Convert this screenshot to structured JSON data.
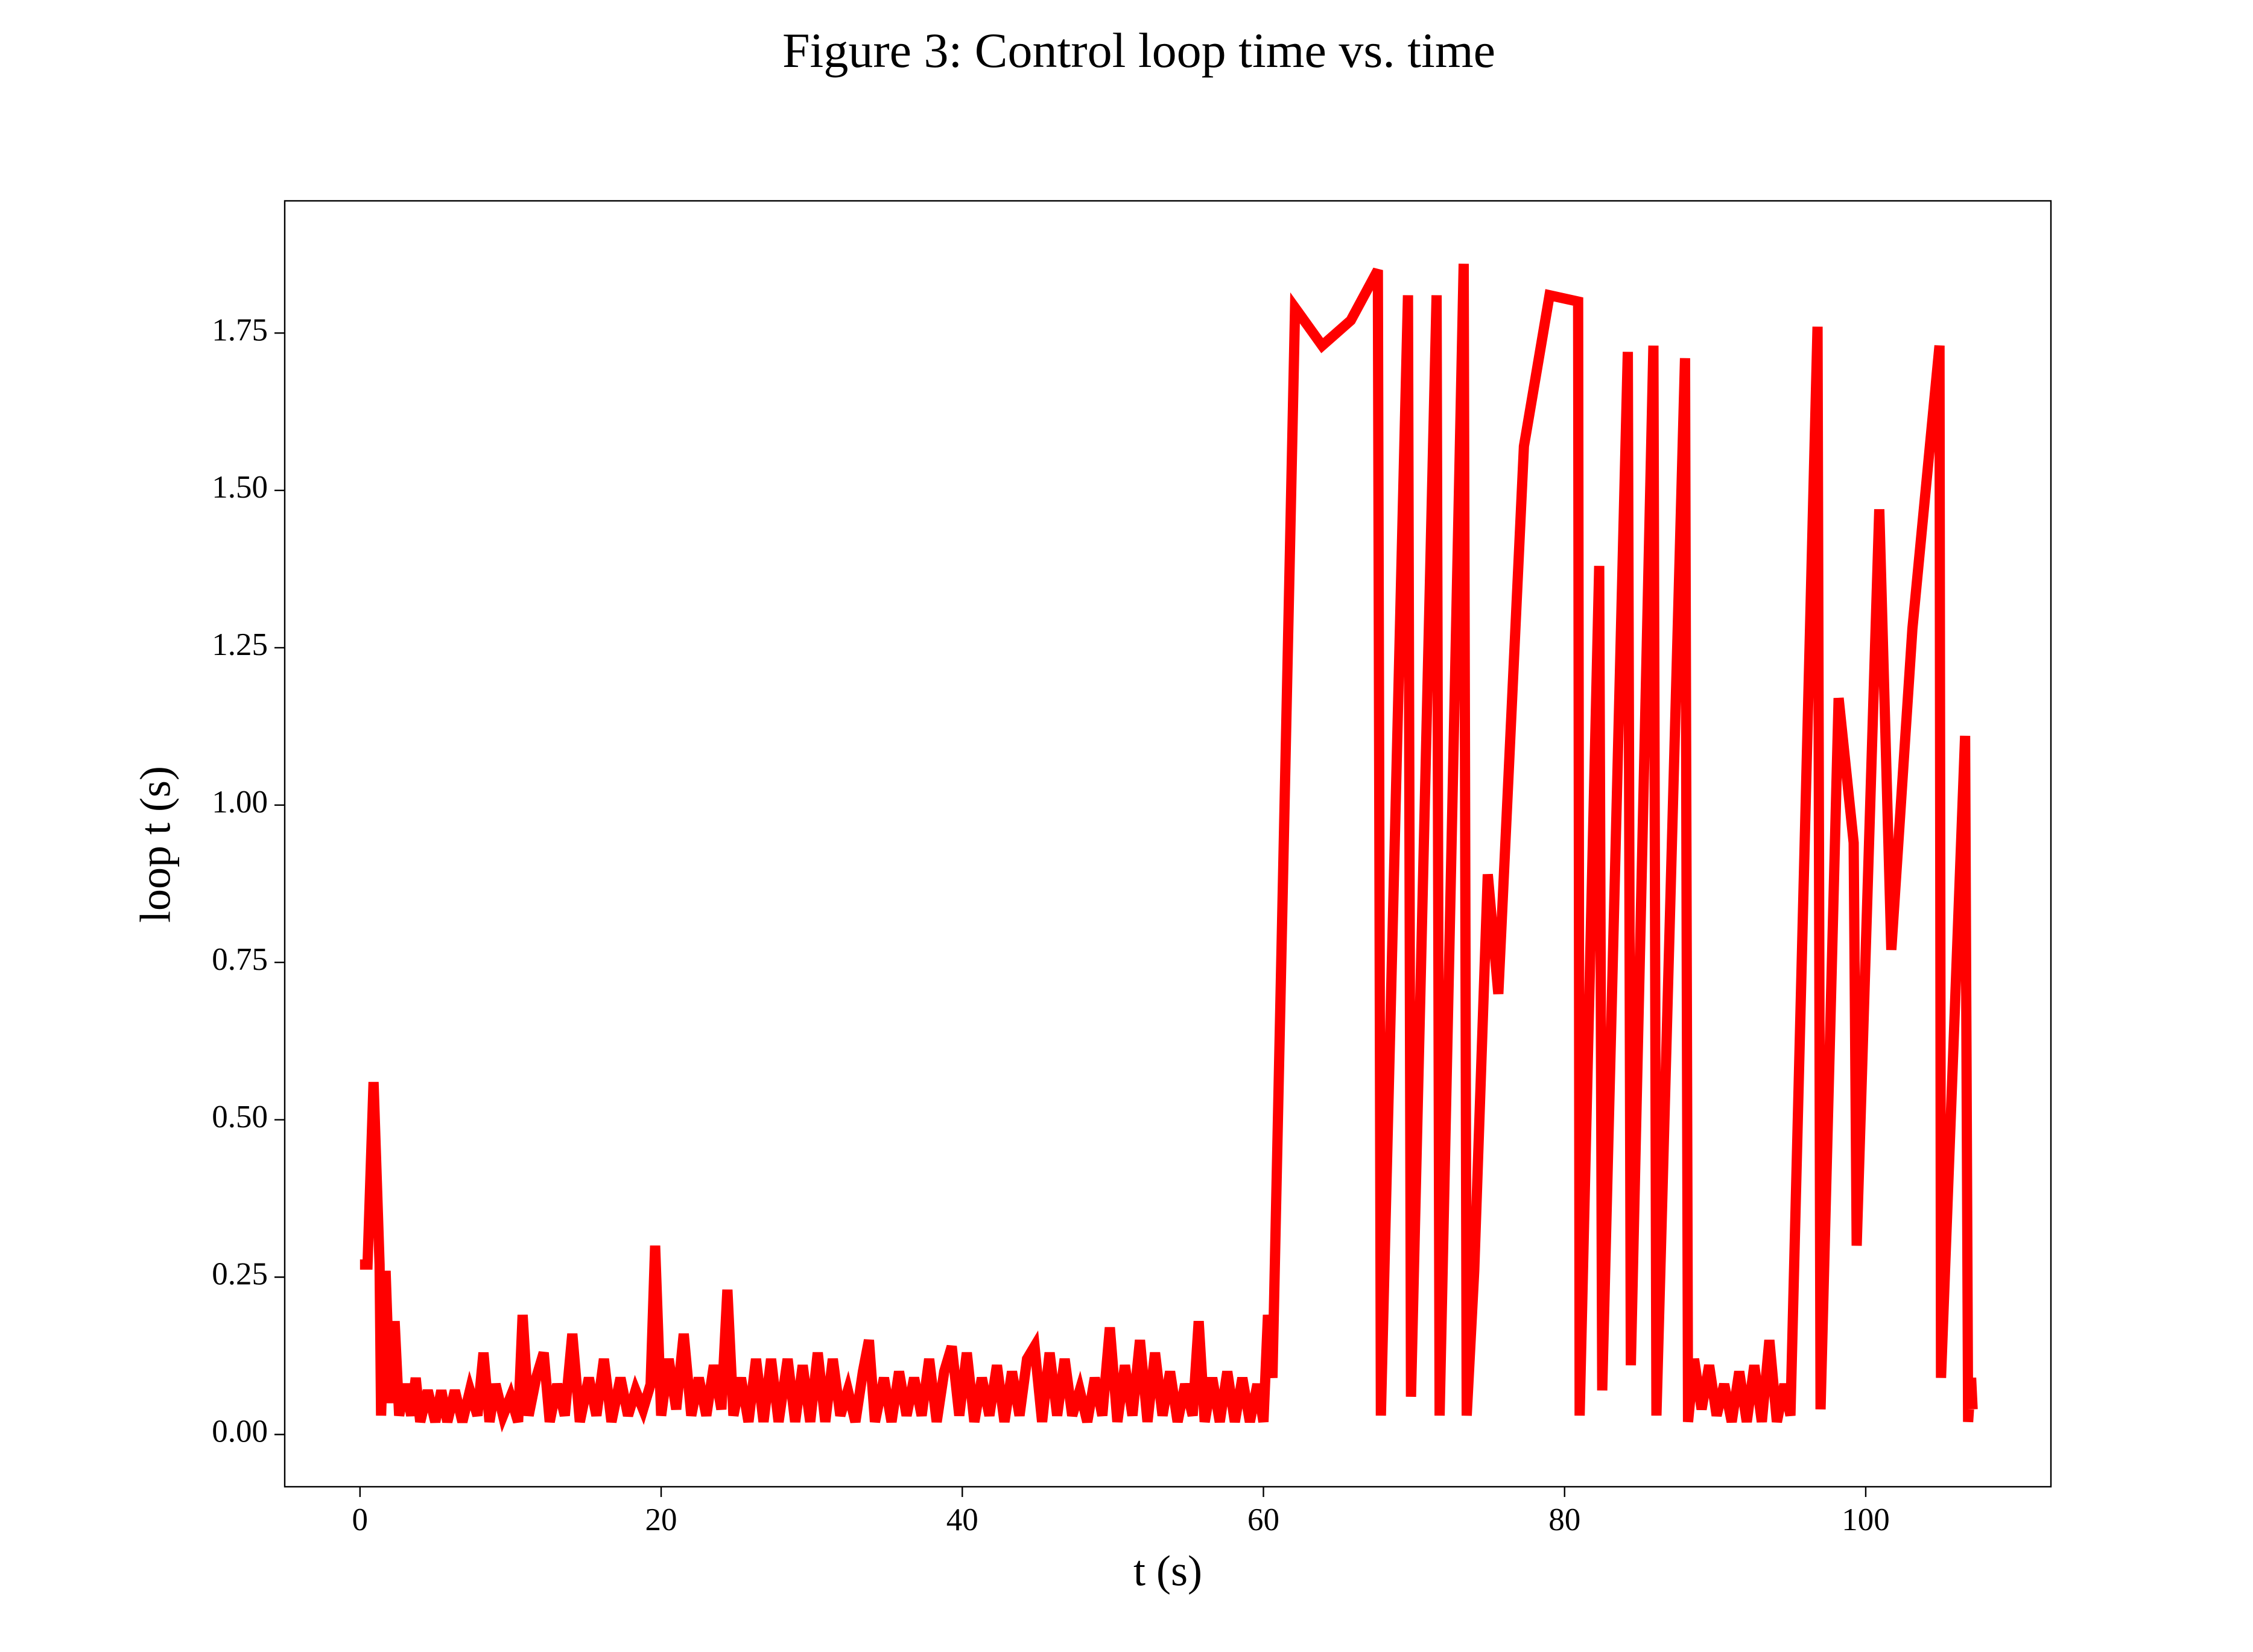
{
  "chart_data": {
    "type": "line",
    "title": "Figure 3: Control loop time vs. time",
    "xlabel": "t (s)",
    "ylabel": "loop t (s)",
    "color": "#ff0000",
    "xlim": [
      -5.0,
      112.3
    ],
    "ylim": [
      -0.083,
      1.96
    ],
    "xticks": [
      0,
      20,
      40,
      60,
      80,
      100
    ],
    "yticks": [
      {
        "value": 0,
        "label": "0.00"
      },
      0.25,
      {
        "value": 0.5,
        "label": "0.50"
      },
      0.75,
      {
        "value": 1,
        "label": "1.00"
      },
      1.25,
      {
        "value": 1.5,
        "label": "1.50"
      },
      1.75
    ],
    "x": [
      0,
      0.5,
      0.9,
      1.3,
      1.4,
      1.7,
      2.0,
      2.3,
      2.6,
      3.0,
      3.4,
      3.7,
      4.0,
      4.5,
      5.0,
      5.4,
      5.8,
      6.3,
      6.8,
      7.3,
      7.8,
      8.2,
      8.6,
      9.0,
      9.5,
      10.0,
      10.5,
      10.8,
      11.2,
      11.7,
      12.2,
      12.6,
      13.1,
      13.6,
      14.1,
      14.6,
      15.2,
      15.7,
      16.2,
      16.7,
      17.3,
      17.8,
      18.3,
      18.8,
      19.3,
      19.6,
      20.0,
      20.5,
      21.0,
      21.5,
      22.0,
      22.5,
      23.0,
      23.5,
      24.0,
      24.4,
      24.8,
      25.3,
      25.8,
      26.3,
      26.8,
      27.3,
      27.8,
      28.4,
      28.9,
      29.4,
      29.9,
      30.4,
      30.9,
      31.4,
      31.9,
      32.4,
      32.9,
      33.4,
      33.8,
      34.2,
      34.8,
      35.3,
      35.8,
      36.3,
      36.8,
      37.3,
      37.8,
      38.3,
      38.8,
      39.3,
      39.8,
      40.3,
      40.8,
      41.3,
      41.8,
      42.3,
      42.8,
      43.3,
      43.8,
      44.3,
      44.8,
      45.3,
      45.8,
      46.3,
      46.8,
      47.3,
      47.8,
      48.3,
      48.8,
      49.3,
      49.8,
      50.3,
      50.8,
      51.3,
      51.8,
      52.3,
      52.8,
      53.3,
      53.8,
      54.3,
      54.8,
      55.3,
      55.7,
      56.1,
      56.6,
      57.1,
      57.6,
      58.1,
      58.6,
      59.1,
      59.6,
      60.0,
      60.3,
      60.6,
      62.1,
      63.9,
      65.8,
      67.6,
      67.8,
      69.6,
      69.8,
      71.5,
      71.7,
      73.3,
      73.5,
      74.0,
      74.9,
      75.6,
      77.3,
      79.0,
      80.9,
      81.0,
      82.3,
      82.5,
      84.2,
      84.4,
      85.9,
      86.1,
      88.0,
      88.2,
      88.6,
      89.1,
      89.6,
      90.1,
      90.6,
      91.1,
      91.6,
      92.1,
      92.6,
      93.1,
      93.6,
      94.1,
      94.6,
      95.0,
      96.8,
      97.0,
      98.2,
      99.2,
      99.4,
      100.9,
      101.7,
      103.1,
      104.9,
      105.0,
      106.6,
      106.8,
      107.0,
      107.1
    ],
    "values": [
      0.27,
      0.27,
      0.56,
      0.27,
      0.03,
      0.26,
      0.05,
      0.18,
      0.03,
      0.08,
      0.03,
      0.09,
      0.02,
      0.07,
      0.02,
      0.07,
      0.02,
      0.07,
      0.02,
      0.07,
      0.03,
      0.13,
      0.02,
      0.08,
      0.03,
      0.06,
      0.02,
      0.19,
      0.03,
      0.09,
      0.13,
      0.02,
      0.08,
      0.03,
      0.16,
      0.02,
      0.09,
      0.03,
      0.12,
      0.02,
      0.09,
      0.03,
      0.07,
      0.04,
      0.08,
      0.3,
      0.03,
      0.12,
      0.04,
      0.16,
      0.03,
      0.09,
      0.03,
      0.11,
      0.04,
      0.23,
      0.03,
      0.09,
      0.02,
      0.12,
      0.02,
      0.12,
      0.02,
      0.12,
      0.02,
      0.11,
      0.02,
      0.13,
      0.02,
      0.12,
      0.03,
      0.07,
      0.02,
      0.1,
      0.15,
      0.02,
      0.09,
      0.02,
      0.1,
      0.03,
      0.09,
      0.03,
      0.12,
      0.02,
      0.1,
      0.14,
      0.03,
      0.13,
      0.02,
      0.09,
      0.03,
      0.11,
      0.02,
      0.1,
      0.03,
      0.12,
      0.14,
      0.02,
      0.13,
      0.03,
      0.12,
      0.03,
      0.07,
      0.02,
      0.09,
      0.03,
      0.17,
      0.02,
      0.11,
      0.03,
      0.15,
      0.02,
      0.13,
      0.03,
      0.1,
      0.02,
      0.08,
      0.03,
      0.18,
      0.02,
      0.09,
      0.02,
      0.1,
      0.02,
      0.09,
      0.02,
      0.08,
      0.02,
      0.19,
      0.09,
      1.79,
      1.73,
      1.77,
      1.85,
      0.03,
      1.81,
      0.06,
      1.81,
      0.03,
      1.86,
      0.03,
      0.26,
      0.89,
      0.7,
      1.57,
      1.81,
      1.8,
      0.03,
      1.38,
      0.07,
      1.72,
      0.11,
      1.73,
      0.03,
      1.71,
      0.02,
      0.12,
      0.04,
      0.11,
      0.03,
      0.08,
      0.02,
      0.1,
      0.02,
      0.11,
      0.02,
      0.15,
      0.02,
      0.08,
      0.03,
      1.76,
      0.04,
      1.17,
      0.94,
      0.3,
      1.47,
      0.77,
      1.28,
      1.73,
      0.09,
      1.11,
      0.02,
      0.09,
      0.04
    ]
  }
}
